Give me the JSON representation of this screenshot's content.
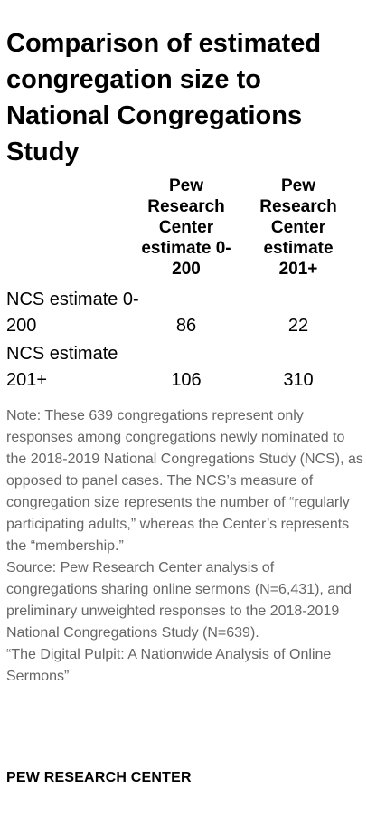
{
  "title": "Comparison of estimated congregation size to National Congregations Study",
  "table": {
    "columns": [
      "Pew Research Center estimate 0-200",
      "Pew Research Center estimate 201+"
    ],
    "rows": [
      {
        "label": "NCS estimate 0-200",
        "values": [
          "86",
          "22"
        ]
      },
      {
        "label": "NCS estimate 201+",
        "values": [
          "106",
          "310"
        ]
      }
    ]
  },
  "note": "Note: These 639 congregations represent only responses among congregations newly nominated to the 2018-2019 National Congregations Study (NCS), as opposed to panel cases. The NCS’s measure of congregation size represents the number of “regularly participating adults,” whereas the Center’s represents the “membership.”",
  "source_line": "Source: Pew Research Center analysis of congregations sharing online sermons (N=6,431), and preliminary unweighted responses to the 2018-2019 National Congregations Study (N=639).",
  "report": "“The Digital Pulpit: A Nationwide Analysis of Online Sermons”",
  "footer": "PEW RESEARCH CENTER",
  "colors": {
    "text": "#000000",
    "note_text": "#666666",
    "background": "#ffffff"
  }
}
